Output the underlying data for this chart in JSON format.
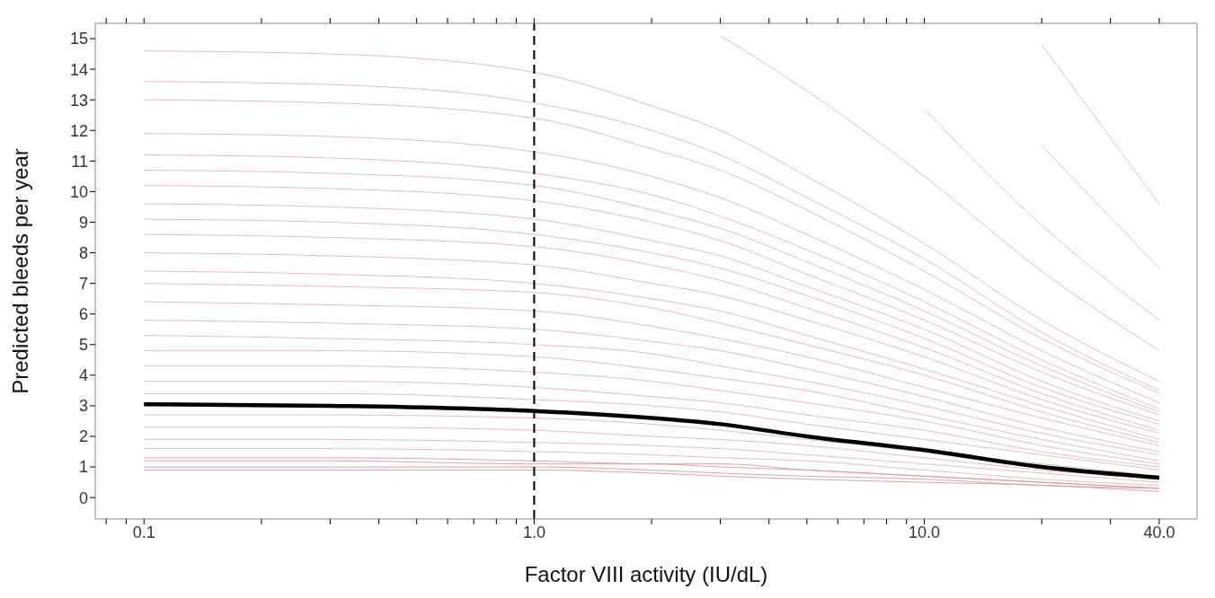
{
  "chart_data": {
    "type": "line",
    "xlabel": "Factor VIII activity (IU/dL)",
    "ylabel": "Predicted bleeds per year",
    "log": "x",
    "marker": "none",
    "line_style": "solid",
    "xlim": [
      0.075,
      50
    ],
    "ylim": [
      -0.7,
      15.5
    ],
    "xticks": [
      {
        "value": 0.08,
        "label": null
      },
      {
        "value": 0.09,
        "label": null
      },
      {
        "value": 0.1,
        "label": "0.1"
      },
      {
        "value": 0.2,
        "label": null
      },
      {
        "value": 0.3,
        "label": null
      },
      {
        "value": 0.4,
        "label": null
      },
      {
        "value": 0.5,
        "label": null
      },
      {
        "value": 0.6,
        "label": null
      },
      {
        "value": 0.7,
        "label": null
      },
      {
        "value": 0.8,
        "label": null
      },
      {
        "value": 0.9,
        "label": null
      },
      {
        "value": 1,
        "label": "1.0"
      },
      {
        "value": 2,
        "label": null
      },
      {
        "value": 3,
        "label": null
      },
      {
        "value": 4,
        "label": null
      },
      {
        "value": 5,
        "label": null
      },
      {
        "value": 6,
        "label": null
      },
      {
        "value": 7,
        "label": null
      },
      {
        "value": 8,
        "label": null
      },
      {
        "value": 9,
        "label": null
      },
      {
        "value": 10,
        "label": "10.0"
      },
      {
        "value": 20,
        "label": null
      },
      {
        "value": 30,
        "label": null
      },
      {
        "value": 40,
        "label": "40.0"
      }
    ],
    "yticks": [
      0,
      1,
      2,
      3,
      4,
      5,
      6,
      7,
      8,
      9,
      10,
      11,
      12,
      13,
      14,
      15
    ],
    "ref_lines": [
      {
        "axis": "x",
        "value": 1,
        "color": "#000000",
        "line_style": "dashed"
      }
    ],
    "x": [
      0.1,
      0.3,
      1,
      2,
      3,
      5,
      10,
      20,
      40
    ],
    "series": [
      {
        "color": "#e3b5b8",
        "values": [
          14.6,
          14.5,
          13.9,
          12.8,
          12.0,
          10.5,
          8.3,
          5.8,
          3.8
        ]
      },
      {
        "color": "#e3b5b8",
        "values": [
          13.6,
          13.5,
          12.9,
          12.0,
          11.2,
          9.8,
          7.8,
          5.4,
          3.5
        ]
      },
      {
        "color": "#e3b5b8",
        "values": [
          13.0,
          12.9,
          12.4,
          11.4,
          10.7,
          9.4,
          7.4,
          5.2,
          3.4
        ]
      },
      {
        "color": "#e3b5b8",
        "values": [
          11.9,
          11.8,
          11.3,
          10.5,
          9.8,
          8.6,
          6.8,
          4.8,
          3.1
        ]
      },
      {
        "color": "#e3b5b8",
        "values": [
          11.2,
          11.1,
          10.6,
          9.9,
          9.2,
          8.1,
          6.4,
          4.5,
          2.9
        ]
      },
      {
        "color": "#e3b5b8",
        "values": [
          10.7,
          10.6,
          10.2,
          9.4,
          8.8,
          7.7,
          6.1,
          4.3,
          2.8
        ]
      },
      {
        "color": "#e3b5b8",
        "values": [
          10.2,
          10.1,
          9.7,
          9.0,
          8.4,
          7.3,
          5.8,
          4.1,
          2.7
        ]
      },
      {
        "color": "#e3b5b8",
        "values": [
          9.6,
          9.5,
          9.1,
          8.4,
          7.9,
          6.9,
          5.5,
          3.8,
          2.5
        ]
      },
      {
        "color": "#e3b5b8",
        "values": [
          9.1,
          9.0,
          8.6,
          8.0,
          7.5,
          6.6,
          5.2,
          3.6,
          2.4
        ]
      },
      {
        "color": "#e3b5b8",
        "values": [
          8.6,
          8.5,
          8.2,
          7.6,
          7.1,
          6.2,
          4.9,
          3.4,
          2.2
        ]
      },
      {
        "color": "#e3b5b8",
        "values": [
          8.0,
          7.9,
          7.6,
          7.0,
          6.6,
          5.8,
          4.6,
          3.2,
          2.1
        ]
      },
      {
        "color": "#e3b5b8",
        "values": [
          7.4,
          7.3,
          7.0,
          6.5,
          6.1,
          5.3,
          4.2,
          3.0,
          1.9
        ]
      },
      {
        "color": "#e3b5b8",
        "values": [
          7.0,
          6.9,
          6.7,
          6.2,
          5.7,
          5.0,
          4.0,
          2.8,
          1.8
        ]
      },
      {
        "color": "#e3b5b8",
        "values": [
          6.4,
          6.3,
          6.1,
          5.6,
          5.2,
          4.6,
          3.6,
          2.6,
          1.7
        ]
      },
      {
        "color": "#e3b5b8",
        "values": [
          5.8,
          5.7,
          5.5,
          5.1,
          4.8,
          4.2,
          3.3,
          2.3,
          1.5
        ]
      },
      {
        "color": "#e3b5b8",
        "values": [
          5.3,
          5.2,
          5.0,
          4.7,
          4.3,
          3.8,
          3.0,
          2.1,
          1.4
        ]
      },
      {
        "color": "#e3b5b8",
        "values": [
          4.8,
          4.8,
          4.6,
          4.2,
          3.9,
          3.5,
          2.7,
          1.9,
          1.2
        ]
      },
      {
        "color": "#e3b5b8",
        "values": [
          4.3,
          4.3,
          4.1,
          3.8,
          3.5,
          3.1,
          2.5,
          1.7,
          1.1
        ]
      },
      {
        "color": "#e3b5b8",
        "values": [
          3.8,
          3.8,
          3.6,
          3.3,
          3.1,
          2.7,
          2.2,
          1.5,
          1.0
        ]
      },
      {
        "color": "#e3b5b8",
        "values": [
          3.4,
          3.4,
          3.2,
          3.0,
          2.8,
          2.4,
          1.9,
          1.4,
          0.9
        ]
      },
      {
        "color": "#e3b5b8",
        "values": [
          2.7,
          2.7,
          2.6,
          2.4,
          2.2,
          1.9,
          1.5,
          1.1,
          0.7
        ]
      },
      {
        "color": "#e3b5b8",
        "values": [
          2.3,
          2.3,
          2.2,
          2.0,
          1.9,
          1.7,
          1.3,
          0.9,
          0.6
        ]
      },
      {
        "color": "#e3b5b8",
        "values": [
          1.9,
          1.9,
          1.8,
          1.7,
          1.6,
          1.4,
          1.1,
          0.8,
          0.5
        ]
      },
      {
        "color": "#e3b5b8",
        "values": [
          1.6,
          1.6,
          1.5,
          1.4,
          1.3,
          1.2,
          0.9,
          0.6,
          0.4
        ]
      },
      {
        "color": "#d9999d",
        "values": [
          1.3,
          1.3,
          1.2,
          1.1,
          1.1,
          0.9,
          0.7,
          0.5,
          0.3
        ]
      },
      {
        "color": "#d9999d",
        "values": [
          1.2,
          1.2,
          1.1,
          1.1,
          1.0,
          0.9,
          0.7,
          0.5,
          0.3
        ]
      },
      {
        "color": "#d9999d",
        "values": [
          1.0,
          1.0,
          1.0,
          0.9,
          0.8,
          0.7,
          0.6,
          0.4,
          0.3
        ]
      },
      {
        "color": "#d9999d",
        "values": [
          0.9,
          0.9,
          0.9,
          0.8,
          0.7,
          0.6,
          0.5,
          0.4,
          0.2
        ]
      },
      {
        "color": "#e3b5b8",
        "values": [
          null,
          null,
          null,
          null,
          null,
          null,
          null,
          14.8,
          9.6
        ]
      },
      {
        "color": "#e3b5b8",
        "values": [
          null,
          null,
          null,
          null,
          null,
          null,
          null,
          11.5,
          7.5
        ]
      },
      {
        "color": "#e3b5b8",
        "values": [
          null,
          null,
          null,
          null,
          null,
          null,
          12.7,
          8.9,
          5.8
        ]
      },
      {
        "color": "#e3b5b8",
        "values": [
          null,
          null,
          null,
          null,
          15.1,
          13.3,
          10.5,
          7.4,
          4.8
        ]
      },
      {
        "color": "#000000",
        "values": [
          3.05,
          3.0,
          2.83,
          2.6,
          2.4,
          2.0,
          1.55,
          1.0,
          0.65
        ]
      }
    ]
  }
}
